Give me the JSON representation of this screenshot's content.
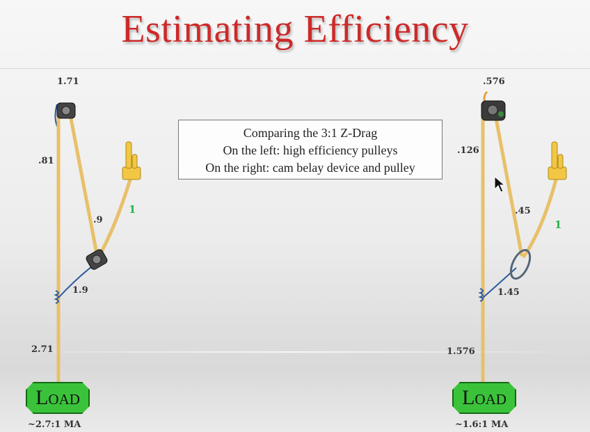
{
  "title": "Estimating Efficiency",
  "caption": {
    "line1": "Comparing the 3:1 Z-Drag",
    "line2": "On the left: high efficiency pulleys",
    "line3": "On the right: cam belay device and pulley"
  },
  "left_system": {
    "anchor_value": "1.71",
    "anchor_leg_value": ".81",
    "middle_leg_value": ".9",
    "pull_value": "1",
    "prusik_value": "1.9",
    "load_rope_value": "2.71",
    "load_label": "Load",
    "ma_label": "~2.7:1 MA"
  },
  "right_system": {
    "anchor_value": ".576",
    "anchor_leg_value": ".126",
    "middle_leg_value": ".45",
    "pull_value": "1",
    "prusik_value": "1.45",
    "load_rope_value": "1.576",
    "load_label": "Load",
    "ma_label": "~1.6:1 MA"
  },
  "colors": {
    "title": "#cc2a2a",
    "rope": "#e8c06a",
    "prusik": "#2c5aa0",
    "load_fill": "#3ac33a",
    "pull_value": "#2bb24c"
  }
}
